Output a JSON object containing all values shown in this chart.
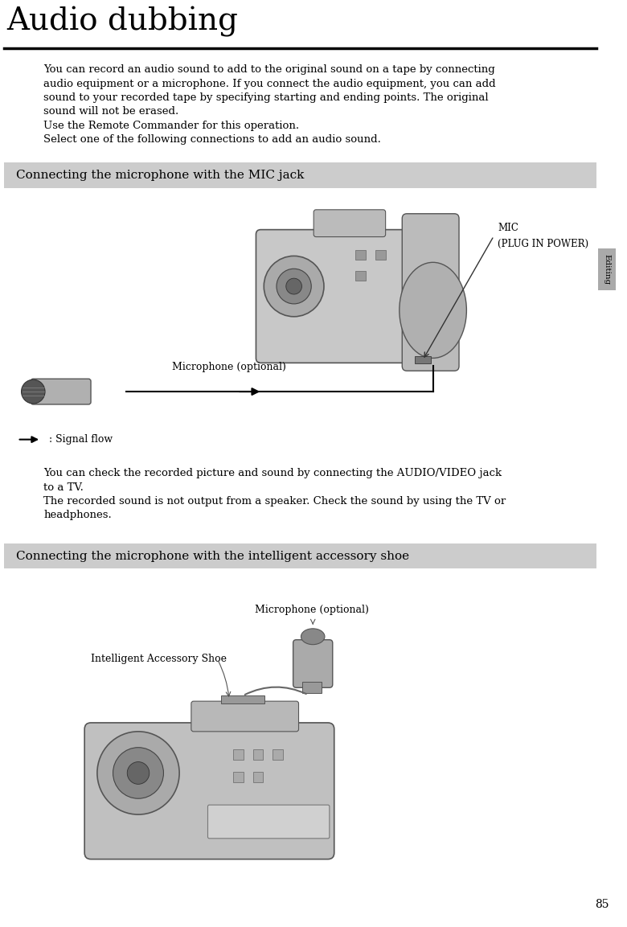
{
  "title": "Audio dubbing",
  "title_fontsize": 28,
  "bg_color": "#ffffff",
  "title_underline_color": "#000000",
  "body_text_color": "#000000",
  "body_fontsize": 9.5,
  "section1_header": "Connecting the microphone with the MIC jack",
  "section2_header": "Connecting the microphone with the intelligent accessory shoe",
  "section_header_bg": "#cccccc",
  "section_header_fontsize": 11,
  "page_number": "85",
  "sidebar_label": "Editing",
  "sidebar_color": "#aaaaaa",
  "para1_lines": [
    "You can record an audio sound to add to the original sound on a tape by connecting",
    "audio equipment or a microphone. If you connect the audio equipment, you can add",
    "sound to your recorded tape by specifying starting and ending points. The original",
    "sound will not be erased.",
    "Use the Remote Commander for this operation.",
    "Select one of the following connections to add an audio sound."
  ],
  "para2_lines": [
    "You can check the recorded picture and sound by connecting the AUDIO/VIDEO jack",
    "to a TV.",
    "The recorded sound is not output from a speaker. Check the sound by using the TV or",
    "headphones."
  ],
  "mic_label_line1": "MIC",
  "mic_label_line2": "(PLUG IN POWER)",
  "microphone_optional_label1": "Microphone (optional)",
  "signal_flow_label": ": Signal flow",
  "microphone_optional_label2": "Microphone (optional)",
  "intelligent_accessory_shoe_label": "Intelligent Accessory Shoe"
}
